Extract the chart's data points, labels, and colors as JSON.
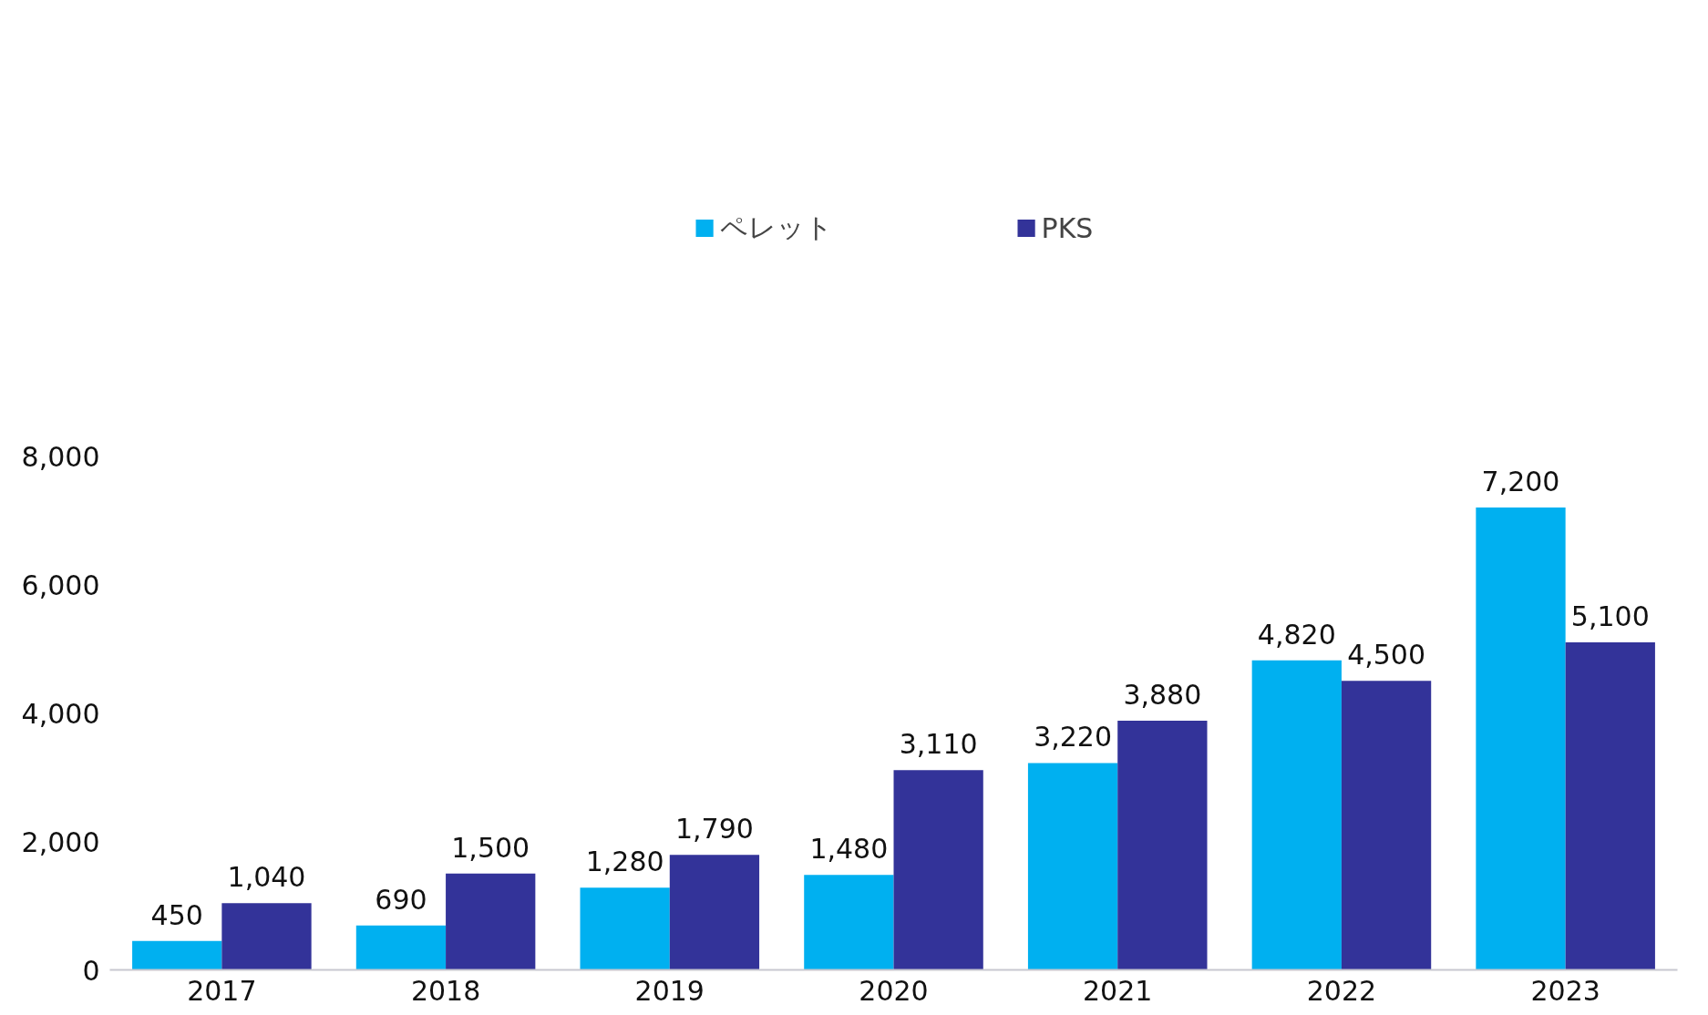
{
  "chart_data": {
    "type": "bar",
    "categories": [
      "2017",
      "2018",
      "2019",
      "2020",
      "2021",
      "2022",
      "2023"
    ],
    "series": [
      {
        "name": "ペレット",
        "color": "#00b0f0",
        "values": [
          450,
          690,
          1280,
          1480,
          3220,
          4820,
          7200
        ],
        "value_labels": [
          "450",
          "690",
          "1,280",
          "1,480",
          "3,220",
          "4,820",
          "7,200"
        ]
      },
      {
        "name": "PKS",
        "color": "#333399",
        "values": [
          1040,
          1500,
          1790,
          3110,
          3880,
          4500,
          5100
        ],
        "value_labels": [
          "1,040",
          "1,500",
          "1,790",
          "3,110",
          "3,880",
          "4,500",
          "5,100"
        ]
      }
    ],
    "ylim": [
      0,
      8000
    ],
    "yticks": [
      {
        "value": 0,
        "label": "0"
      },
      {
        "value": 2000,
        "label": "2,000"
      },
      {
        "value": 4000,
        "label": "4,000"
      },
      {
        "value": 6000,
        "label": "6,000"
      },
      {
        "value": 8000,
        "label": "8,000"
      }
    ],
    "legend": "top",
    "grid": false
  }
}
